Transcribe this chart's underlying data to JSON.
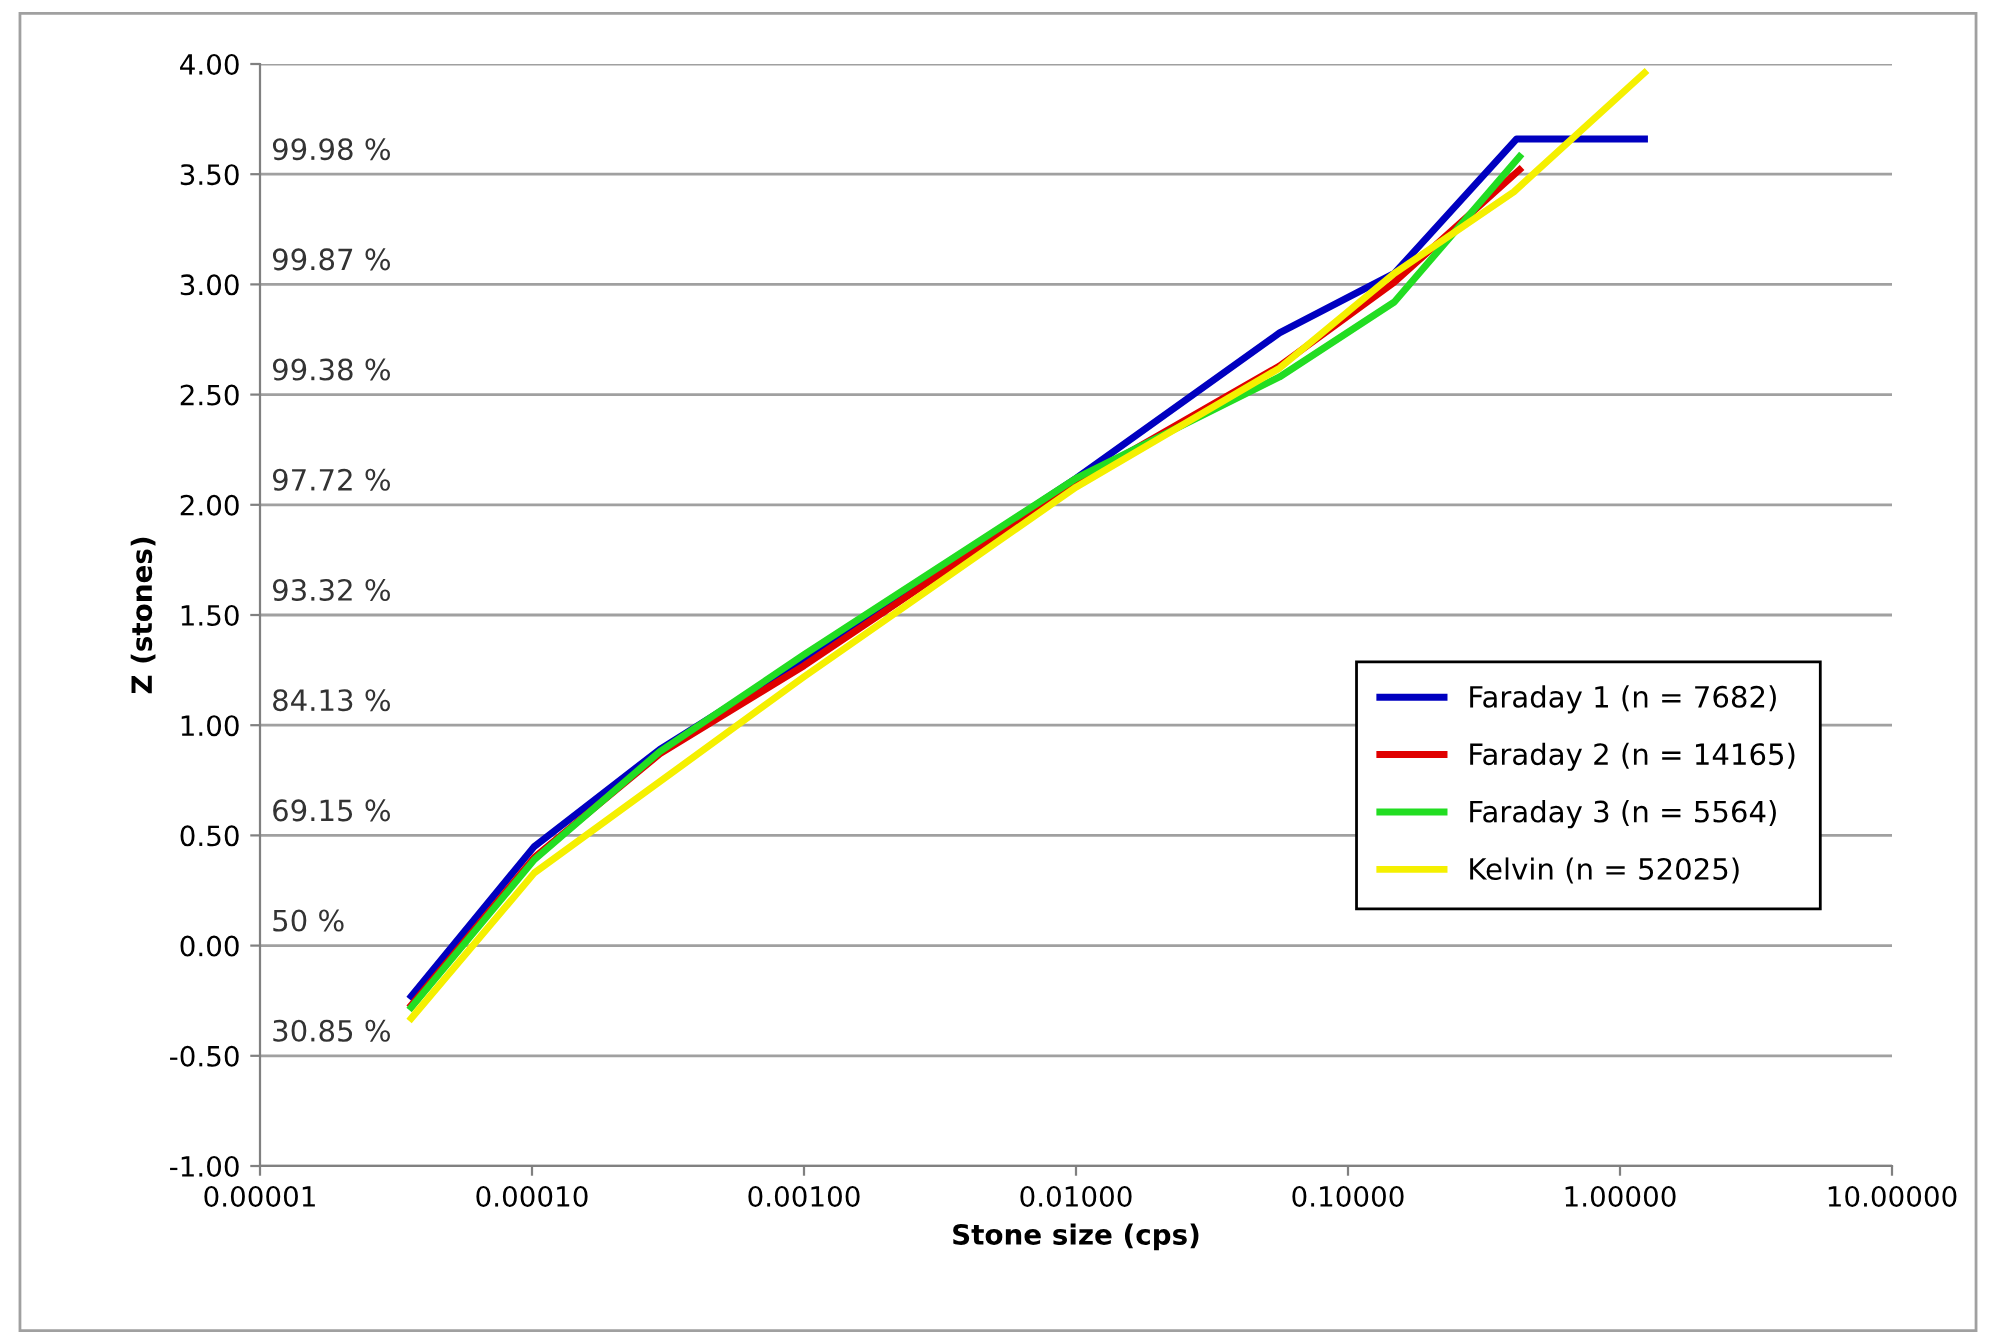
{
  "chart_data": {
    "type": "line",
    "xlabel": "Stone size (cps)",
    "ylabel": "Z (stones)",
    "log": "x",
    "xlim": [
      1e-05,
      10
    ],
    "xticks": [
      {
        "value": 1e-05,
        "label": "0.00001"
      },
      {
        "value": 0.0001,
        "label": "0.00010"
      },
      {
        "value": 0.001,
        "label": "0.00100"
      },
      {
        "value": 0.01,
        "label": "0.01000"
      },
      {
        "value": 0.1,
        "label": "0.10000"
      },
      {
        "value": 1,
        "label": "1.00000"
      },
      {
        "value": 10,
        "label": "10.00000"
      }
    ],
    "ylim": [
      -1,
      4
    ],
    "yticks": [
      {
        "value": -1,
        "label": "-1.00"
      },
      {
        "value": -0.5,
        "label": "-0.50"
      },
      {
        "value": 0,
        "label": "0.00"
      },
      {
        "value": 0.5,
        "label": "0.50"
      },
      {
        "value": 1,
        "label": "1.00"
      },
      {
        "value": 1.5,
        "label": "1.50"
      },
      {
        "value": 2,
        "label": "2.00"
      },
      {
        "value": 2.5,
        "label": "2.50"
      },
      {
        "value": 3,
        "label": "3.00"
      },
      {
        "value": 3.5,
        "label": "3.50"
      },
      {
        "value": 4,
        "label": "4.00"
      }
    ],
    "grid": "y",
    "legend": "bottom right",
    "marker": "none",
    "line_style": "solid",
    "series": [
      {
        "name": "Faraday 1 (n = 7682)",
        "color": "#0000c0",
        "x": [
          3.6e-05,
          0.000102,
          0.000295,
          0.001,
          0.01,
          0.056,
          0.148,
          0.417,
          1.23
        ],
        "values": [
          -0.23,
          0.45,
          0.89,
          1.3,
          2.12,
          2.78,
          3.05,
          3.66,
          3.66
        ]
      },
      {
        "name": "Faraday 2 (n = 14165)",
        "color": "#e00000",
        "x": [
          3.6e-05,
          0.000102,
          0.000295,
          0.001,
          0.01,
          0.056,
          0.148,
          0.427
        ],
        "values": [
          -0.27,
          0.4,
          0.87,
          1.27,
          2.1,
          2.63,
          3.01,
          3.52
        ]
      },
      {
        "name": "Faraday 3 (n = 5564)",
        "color": "#22dd22",
        "x": [
          3.6e-05,
          0.000102,
          0.000295,
          0.001,
          0.01,
          0.056,
          0.148,
          0.427
        ],
        "values": [
          -0.28,
          0.39,
          0.88,
          1.32,
          2.12,
          2.58,
          2.92,
          3.58
        ]
      },
      {
        "name": "Kelvin (n = 52025)",
        "color": "#f5f000",
        "x": [
          3.6e-05,
          0.000102,
          0.001,
          0.01,
          0.056,
          0.148,
          0.407,
          1.23
        ],
        "values": [
          -0.33,
          0.33,
          1.22,
          2.08,
          2.62,
          3.05,
          3.42,
          3.96
        ]
      }
    ],
    "annotations": [
      "30.85 %",
      "50 %",
      "69.15 %",
      "84.13 %",
      "93.32 %",
      "97.72 %",
      "99.38 %",
      "99.87 %",
      "99.98 %"
    ]
  }
}
